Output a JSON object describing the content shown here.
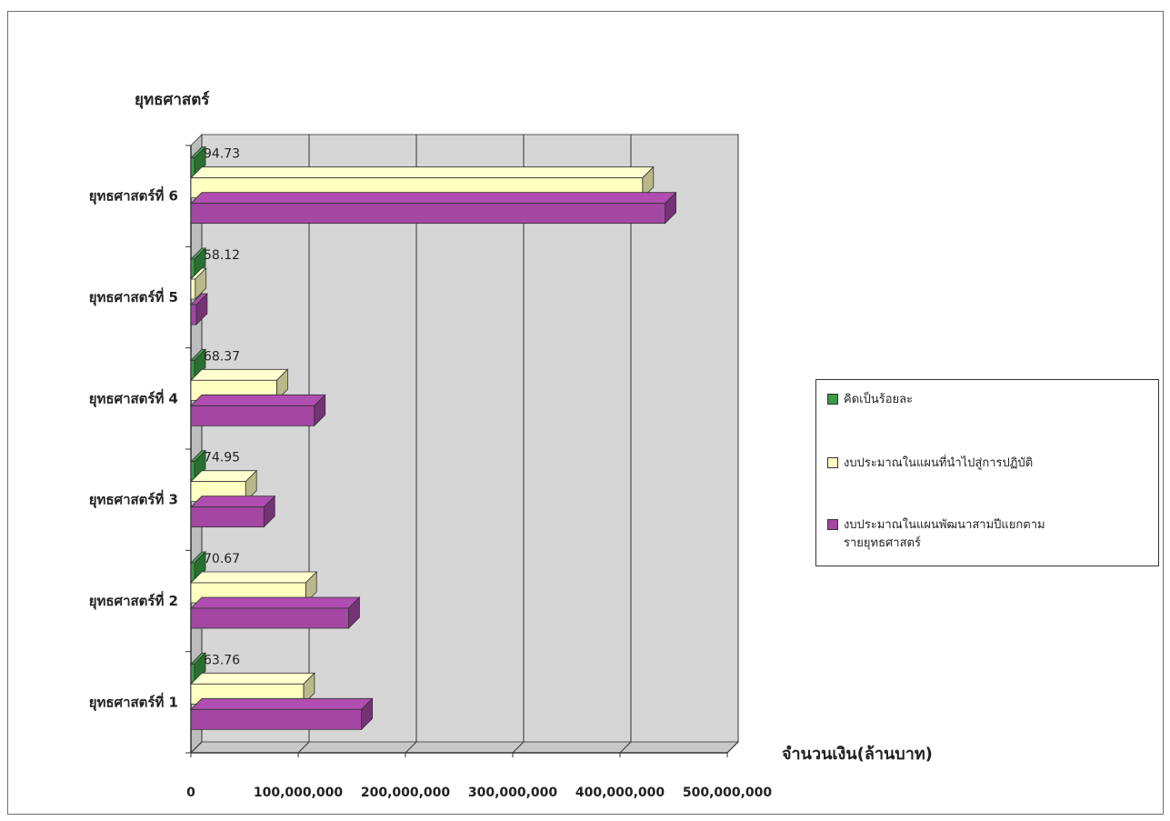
{
  "chart_data": {
    "type": "bar",
    "orientation": "horizontal",
    "style": "3d",
    "title": "ยุทธศาสตร์",
    "xlabel": "จำนวนเงิน(ล้านบาท)",
    "ylabel": "",
    "xlim": [
      0,
      500000000
    ],
    "x_ticks": [
      "0",
      "100,000,000",
      "200,000,000",
      "300,000,000",
      "400,000,000",
      "500,000,000"
    ],
    "categories": [
      "ยุทธศาสตร์ที่ 1",
      "ยุทธศาสตร์ที่ 2",
      "ยุทธศาสตร์ที่ 3",
      "ยุทธศาสตร์ที่ 4",
      "ยุทธศาสตร์ที่ 5",
      "ยุทธศาสตร์ที่ 6"
    ],
    "series": [
      {
        "name": "คิดเป็นร้อยละ",
        "color": "#3a9a45",
        "values": [
          63.76,
          70.67,
          74.95,
          68.37,
          58.12,
          94.73
        ],
        "data_labels": [
          "63.76",
          "70.67",
          "74.95",
          "68.37",
          "58.12",
          "94.73"
        ]
      },
      {
        "name": "งบประมาณในแผนที่นำไปสู่การปฏิบัติ",
        "color": "#ffffc0",
        "values": [
          105000000,
          107000000,
          51000000,
          80000000,
          4000000,
          421000000
        ]
      },
      {
        "name": "งบประมาณในแผนพัฒนาสามปีแยกตามรายยุทธศาสตร์",
        "color": "#a347a3",
        "values": [
          159000000,
          147000000,
          68000000,
          115000000,
          5000000,
          442000000
        ]
      }
    ],
    "grid": true,
    "legend_position": "right"
  },
  "legend": {
    "items": [
      "คิดเป็นร้อยละ",
      "งบประมาณในแผนที่นำไปสู่การปฏิบัติ",
      "งบประมาณในแผนพัฒนาสามปีแยกตามรายยุทธศาสตร์"
    ]
  }
}
